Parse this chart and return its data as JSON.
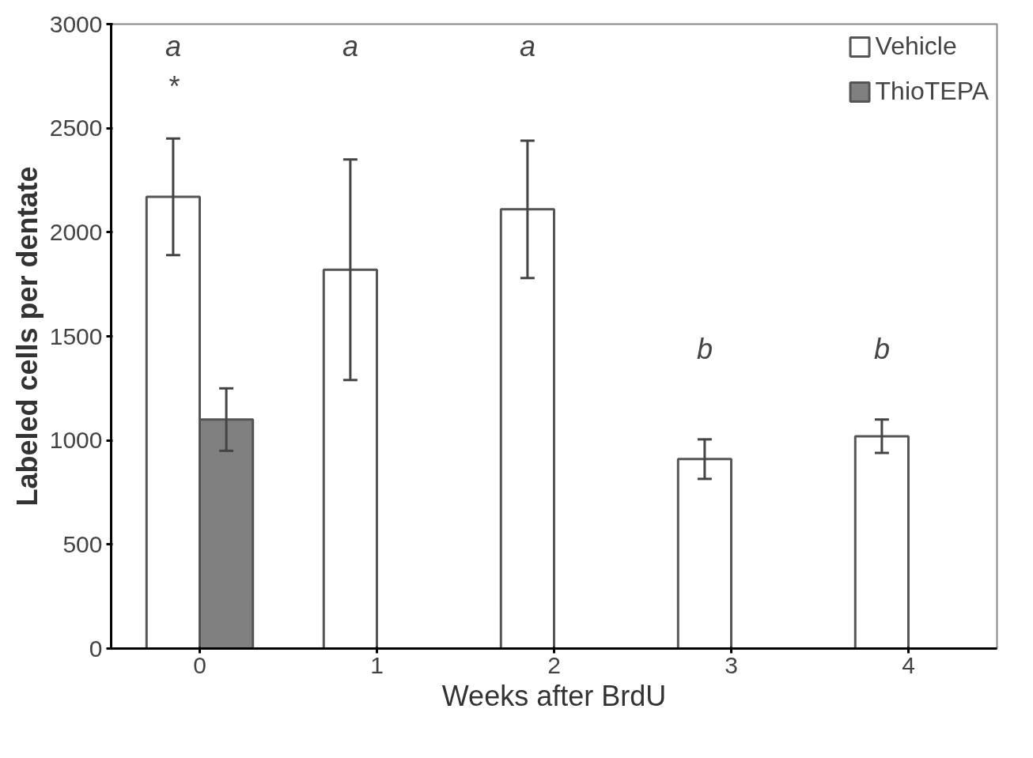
{
  "chart_data": {
    "type": "bar",
    "xlabel": "Weeks after BrdU",
    "ylabel": "Labeled cells per dentate",
    "categories": [
      "0",
      "1",
      "2",
      "3",
      "4"
    ],
    "series": [
      {
        "name": "Vehicle",
        "color": "#ffffff",
        "values": [
          2170,
          1820,
          2110,
          910,
          1020
        ],
        "errors": [
          280,
          530,
          330,
          95,
          80
        ]
      },
      {
        "name": "ThioTEPA",
        "color": "#808080",
        "values": [
          1100,
          null,
          null,
          null,
          null
        ],
        "errors": [
          150,
          null,
          null,
          null,
          null
        ]
      }
    ],
    "ylim": [
      0,
      3000
    ],
    "yticks": [
      0,
      500,
      1000,
      1500,
      2000,
      2500,
      3000
    ],
    "grid": false,
    "legend": "top right",
    "annotations": [
      "a",
      "*",
      "a",
      "a",
      "b",
      "b"
    ]
  }
}
